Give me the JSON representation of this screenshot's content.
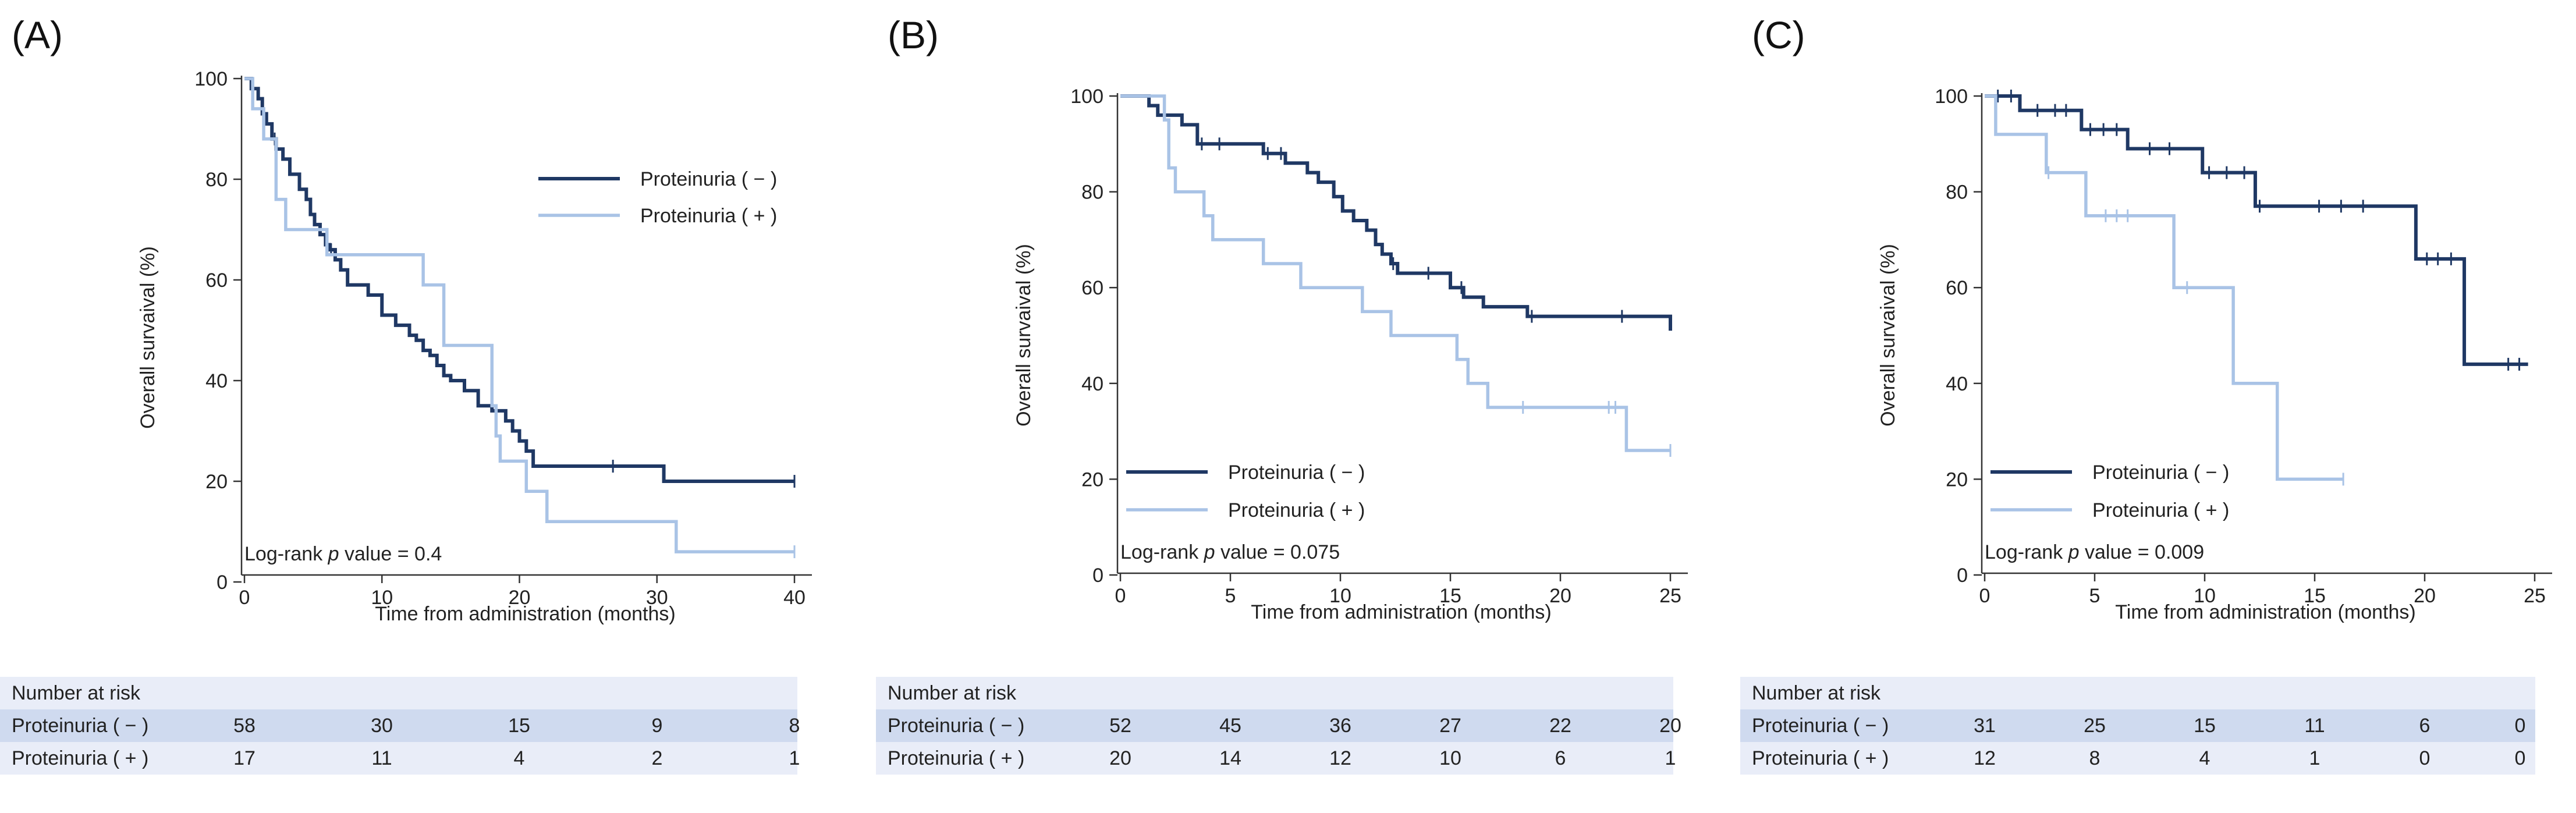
{
  "figure": {
    "colors": {
      "negative": "#1f3864",
      "positive": "#a9c3e6",
      "axis": "#333333"
    },
    "risk_title": "Number at risk",
    "row_negative": "Proteinuria ( − )",
    "row_positive": "Proteinuria ( + )"
  },
  "chart_data": [
    {
      "panel": "(A)",
      "type": "line",
      "subtype": "kaplan-meier",
      "xlabel": "Time from administration (months)",
      "ylabel": "Overall survaival (%)",
      "xlim": [
        0,
        40
      ],
      "ylim": [
        0,
        100
      ],
      "xticks": [
        0,
        10,
        20,
        30,
        40
      ],
      "yticks": [
        0,
        20,
        40,
        60,
        80,
        100
      ],
      "annotation": {
        "prefix": "Log-rank ",
        "italic": "p",
        "suffix": " value = 0.4"
      },
      "legend_position": "top-right",
      "series": [
        {
          "name": "Proteinuria ( − )",
          "color": "#1f3864",
          "x": [
            0,
            0.5,
            1,
            1.3,
            1.6,
            2,
            2.3,
            2.8,
            3.3,
            4,
            4.5,
            4.8,
            5.1,
            5.5,
            5.9,
            6.2,
            6.6,
            7,
            7.5,
            8,
            9,
            10,
            11,
            12,
            12.5,
            13,
            13.5,
            14,
            14.5,
            15,
            16,
            17,
            17.5,
            18,
            19,
            19.5,
            20,
            20.5,
            21,
            22,
            25,
            30,
            30.5,
            40
          ],
          "y": [
            100,
            98,
            96,
            93,
            91,
            88,
            86,
            84,
            81,
            78,
            76,
            73,
            71,
            69,
            67,
            66,
            64,
            62,
            59,
            59,
            57,
            53,
            51,
            49,
            48,
            46,
            45,
            43,
            41,
            40,
            38,
            35,
            35,
            34,
            32,
            30,
            28,
            26,
            23,
            23,
            23,
            23,
            20,
            20
          ],
          "censor_x": [
            2.2,
            6.3,
            26.8,
            40
          ]
        },
        {
          "name": "Proteinuria ( + )",
          "color": "#a9c3e6",
          "x": [
            0,
            0.6,
            1.4,
            2.3,
            3,
            4,
            6,
            7,
            13,
            14.5,
            18,
            18.3,
            18.6,
            19.8,
            20.5,
            22,
            31.4,
            40
          ],
          "y": [
            100,
            94,
            88,
            76,
            70,
            70,
            65,
            65,
            59,
            47,
            35,
            29,
            24,
            24,
            18,
            12,
            6,
            6
          ],
          "censor_x": [
            40
          ]
        }
      ],
      "risk": {
        "times": [
          0,
          10,
          20,
          30,
          40
        ],
        "negative": [
          "58",
          "30",
          "15",
          "9",
          "8"
        ],
        "positive": [
          "17",
          "11",
          "4",
          "2",
          "1"
        ]
      }
    },
    {
      "panel": "(B)",
      "type": "line",
      "subtype": "kaplan-meier",
      "xlabel": "Time from administration (months)",
      "ylabel": "Overall survaival (%)",
      "xlim": [
        0,
        25
      ],
      "ylim": [
        0,
        100
      ],
      "xticks": [
        0,
        5,
        10,
        15,
        20,
        25
      ],
      "yticks": [
        0,
        20,
        40,
        60,
        80,
        100
      ],
      "annotation": {
        "prefix": "Log-rank ",
        "italic": "p",
        "suffix": " value = 0.075"
      },
      "legend_position": "bottom-left",
      "series": [
        {
          "name": "Proteinuria ( − )",
          "color": "#1f3864",
          "x": [
            0,
            1.3,
            1.7,
            2.8,
            3.5,
            6.5,
            7.5,
            8.5,
            9,
            9.7,
            10.1,
            10.6,
            11.2,
            11.6,
            11.9,
            12.3,
            12.6,
            12.9,
            15,
            15.6,
            16.5,
            18.5,
            25
          ],
          "y": [
            100,
            98,
            96,
            94,
            90,
            88,
            86,
            84,
            82,
            79,
            76,
            74,
            72,
            69,
            67,
            65,
            63,
            63,
            60,
            58,
            56,
            54,
            51
          ],
          "censor_x": [
            3.7,
            4.5,
            6.7,
            7.3,
            12.4,
            14,
            15.5,
            18.7,
            22.8
          ]
        },
        {
          "name": "Proteinuria ( + )",
          "color": "#a9c3e6",
          "x": [
            0,
            2,
            2.2,
            2.5,
            3.8,
            4.2,
            6.5,
            8.2,
            11,
            12.3,
            15.3,
            15.8,
            16.7,
            23,
            25
          ],
          "y": [
            100,
            95,
            85,
            80,
            75,
            70,
            65,
            60,
            55,
            50,
            45,
            40,
            35,
            26,
            26
          ],
          "censor_x": [
            18.3,
            22.2,
            22.5,
            25
          ]
        }
      ],
      "risk": {
        "times": [
          0,
          5,
          10,
          15,
          20,
          25
        ],
        "negative": [
          "52",
          "45",
          "36",
          "27",
          "22",
          "20"
        ],
        "positive": [
          "20",
          "14",
          "12",
          "10",
          "6",
          "1"
        ]
      }
    },
    {
      "panel": "(C)",
      "type": "line",
      "subtype": "kaplan-meier",
      "xlabel": "Time from administration (months)",
      "ylabel": "Overall survaival (%)",
      "xlim": [
        0,
        25
      ],
      "ylim": [
        0,
        100
      ],
      "xticks": [
        0,
        5,
        10,
        15,
        20,
        25
      ],
      "yticks": [
        0,
        20,
        40,
        60,
        80,
        100
      ],
      "annotation": {
        "prefix": "Log-rank ",
        "italic": "p",
        "suffix": " value = 0.009"
      },
      "legend_position": "bottom-left",
      "series": [
        {
          "name": "Proteinuria ( − )",
          "color": "#1f3864",
          "x": [
            0,
            1.6,
            4.4,
            6.5,
            9.9,
            12.3,
            19.6,
            21.8,
            24.7
          ],
          "y": [
            100,
            97,
            93,
            89,
            84,
            77,
            66,
            44,
            44
          ],
          "censor_x": [
            0.6,
            1.2,
            2.4,
            3.2,
            3.7,
            4.8,
            5.4,
            6,
            7.5,
            8.4,
            10.2,
            11,
            11.8,
            12.5,
            15.2,
            16.2,
            17.2,
            20.1,
            20.6,
            21.2,
            23.8,
            24.3
          ]
        },
        {
          "name": "Proteinuria ( + )",
          "color": "#a9c3e6",
          "x": [
            0,
            0.5,
            2.8,
            4.6,
            8.6,
            11.3,
            13.3,
            16.3
          ],
          "y": [
            100,
            92,
            84,
            75,
            60,
            40,
            20,
            20
          ],
          "censor_x": [
            2.9,
            5.5,
            6,
            6.5,
            9.2,
            16.3
          ]
        }
      ],
      "risk": {
        "times": [
          0,
          5,
          10,
          15,
          20,
          25
        ],
        "negative": [
          "31",
          "25",
          "15",
          "11",
          "6",
          "0"
        ],
        "positive": [
          "12",
          "8",
          "4",
          "1",
          "0",
          "0"
        ]
      }
    }
  ]
}
